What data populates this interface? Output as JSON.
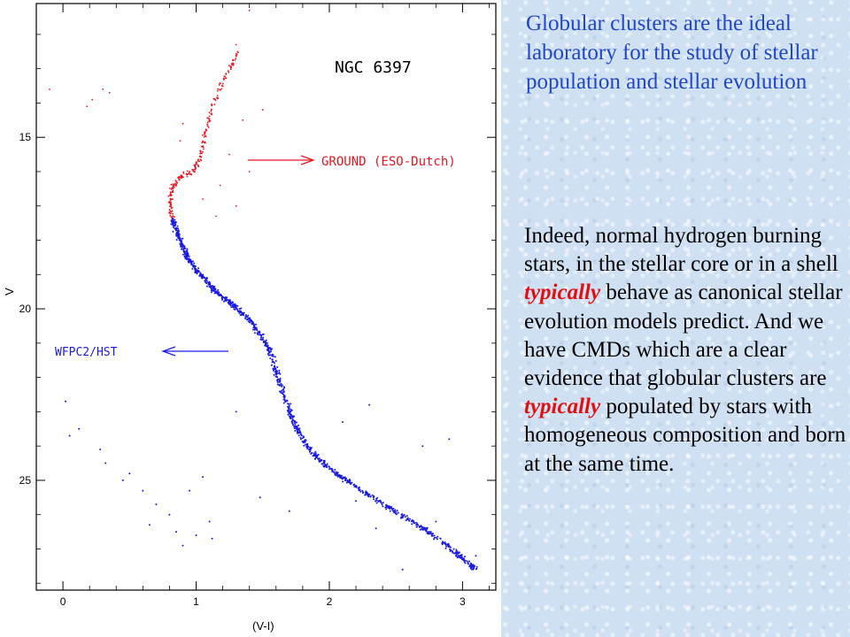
{
  "chart_data": {
    "type": "scatter",
    "title": "NGC 6397",
    "xlabel": "(V-I)",
    "ylabel": "V",
    "xlim": [
      -0.2,
      3.25
    ],
    "ylim": [
      28.2,
      11.1
    ],
    "y_inverted": true,
    "xticks": [
      0,
      1,
      2,
      3
    ],
    "yticks": [
      15,
      20,
      25
    ],
    "annotations": [
      {
        "label": "GROUND (ESO-Dutch)",
        "target_series": "GROUND (ESO-Dutch)",
        "x": 1.7,
        "y": 14.6
      },
      {
        "label": "WFPC2/HST",
        "target_series": "WFPC2/HST",
        "x": 0.6,
        "y": 21.2
      }
    ],
    "series": [
      {
        "name": "GROUND (ESO-Dutch)",
        "color": "#e8141e",
        "track": [
          [
            1.32,
            12.5
          ],
          [
            1.22,
            13.2
          ],
          [
            1.12,
            14.1
          ],
          [
            1.07,
            14.9
          ],
          [
            1.03,
            15.6
          ],
          [
            0.98,
            16.0
          ],
          [
            0.88,
            16.15
          ],
          [
            0.82,
            16.5
          ],
          [
            0.8,
            17.0
          ],
          [
            0.83,
            17.5
          ]
        ],
        "extra_points": [
          [
            1.4,
            11.3
          ],
          [
            1.3,
            12.3
          ],
          [
            1.28,
            12.9
          ],
          [
            0.3,
            13.6
          ],
          [
            0.22,
            13.9
          ],
          [
            0.18,
            14.1
          ],
          [
            0.35,
            13.7
          ],
          [
            -0.1,
            13.6
          ],
          [
            1.5,
            14.2
          ],
          [
            1.35,
            14.5
          ],
          [
            0.9,
            14.6
          ],
          [
            0.88,
            15.1
          ],
          [
            1.25,
            15.5
          ],
          [
            1.4,
            16.0
          ],
          [
            1.18,
            16.4
          ],
          [
            1.05,
            16.8
          ],
          [
            1.3,
            17.0
          ],
          [
            1.15,
            17.3
          ]
        ]
      },
      {
        "name": "WFPC2/HST",
        "color": "#1a1ae6",
        "track": [
          [
            0.82,
            17.4
          ],
          [
            0.87,
            17.9
          ],
          [
            0.93,
            18.5
          ],
          [
            1.03,
            19.0
          ],
          [
            1.15,
            19.5
          ],
          [
            1.28,
            19.9
          ],
          [
            1.42,
            20.4
          ],
          [
            1.55,
            21.2
          ],
          [
            1.63,
            22.2
          ],
          [
            1.72,
            23.2
          ],
          [
            1.83,
            24.0
          ],
          [
            1.98,
            24.6
          ],
          [
            2.2,
            25.2
          ],
          [
            2.45,
            25.8
          ],
          [
            2.7,
            26.4
          ],
          [
            2.95,
            27.1
          ],
          [
            3.1,
            27.6
          ]
        ],
        "extra_points": [
          [
            0.02,
            22.7
          ],
          [
            0.12,
            23.5
          ],
          [
            0.05,
            23.7
          ],
          [
            0.28,
            24.1
          ],
          [
            0.32,
            24.5
          ],
          [
            0.5,
            24.8
          ],
          [
            0.45,
            25.0
          ],
          [
            0.6,
            25.3
          ],
          [
            0.7,
            25.7
          ],
          [
            0.65,
            26.3
          ],
          [
            0.8,
            26.0
          ],
          [
            0.85,
            26.5
          ],
          [
            0.9,
            26.9
          ],
          [
            1.0,
            26.6
          ],
          [
            1.1,
            26.2
          ],
          [
            0.95,
            25.3
          ],
          [
            1.12,
            26.7
          ],
          [
            2.1,
            23.3
          ],
          [
            2.7,
            24.0
          ],
          [
            2.3,
            22.8
          ],
          [
            2.9,
            23.8
          ],
          [
            1.3,
            23.0
          ],
          [
            2.8,
            26.2
          ],
          [
            3.1,
            27.2
          ],
          [
            2.55,
            27.6
          ],
          [
            1.7,
            25.9
          ],
          [
            1.05,
            24.9
          ],
          [
            1.48,
            25.5
          ],
          [
            2.2,
            25.6
          ],
          [
            2.35,
            26.4
          ]
        ]
      }
    ]
  },
  "text": {
    "intro": "Globular clusters are the ideal laboratory for the study of stellar population and stellar evolution",
    "body_1": "Indeed, normal hydrogen burning stars, in the stellar core or in a shell ",
    "emph_1": "typically",
    "body_2": " behave as canonical stellar evolution models predict. And we have CMDs which are a clear evidence that globular clusters are ",
    "emph_2": "typically",
    "body_3": " populated by stars with homogeneous composition and born at the same time."
  }
}
